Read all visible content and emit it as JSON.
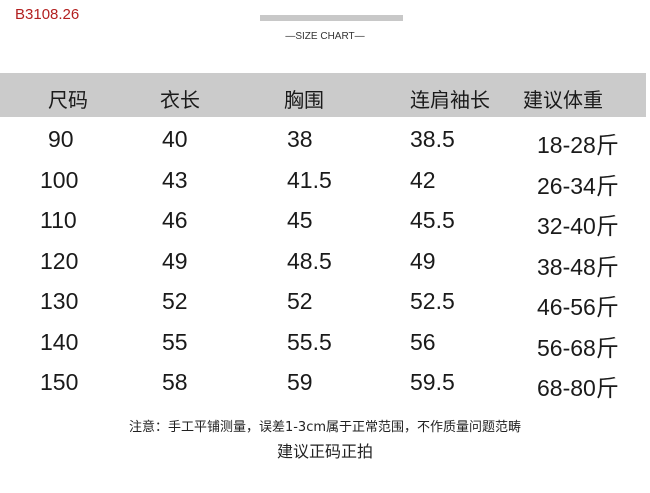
{
  "product_code": "B3108.26",
  "subtitle": "—SIZE CHART—",
  "table": {
    "headers": [
      "尺码",
      "衣长",
      "胸围",
      "连肩袖长",
      "建议体重"
    ],
    "rows": [
      [
        "90",
        "40",
        "38",
        "38.5",
        "18-28斤"
      ],
      [
        "100",
        "43",
        "41.5",
        "42",
        "26-34斤"
      ],
      [
        "110",
        "46",
        "45",
        "45.5",
        "32-40斤"
      ],
      [
        "120",
        "49",
        "48.5",
        "49",
        "38-48斤"
      ],
      [
        "130",
        "52",
        "52",
        "52.5",
        "46-56斤"
      ],
      [
        "140",
        "55",
        "55.5",
        "56",
        "56-68斤"
      ],
      [
        "150",
        "58",
        "59",
        "59.5",
        "68-80斤"
      ]
    ]
  },
  "note": "注意：手工平铺测量，误差1-3cm属于正常范围，不作质量问题范畴",
  "advice": "建议正码正拍",
  "colors": {
    "header_bg": "#cbcbcb",
    "code_text": "#b32020"
  }
}
